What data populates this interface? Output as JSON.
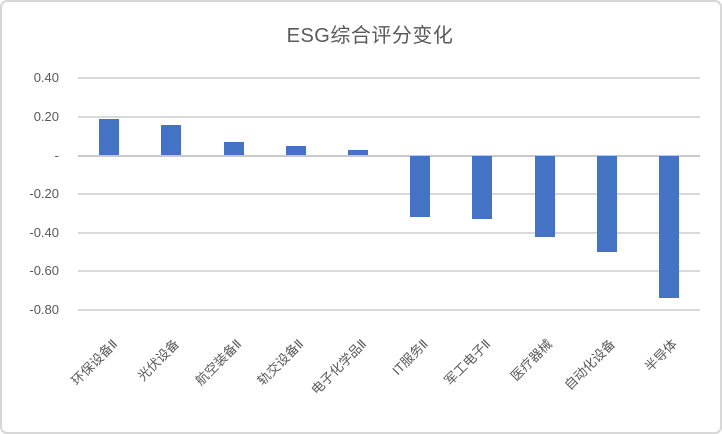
{
  "chart_data": {
    "type": "bar",
    "title": "ESG综合评分变化",
    "categories": [
      "环保设备Ⅱ",
      "光伏设备",
      "航空装备Ⅱ",
      "轨交设备Ⅱ",
      "电子化学品Ⅱ",
      "IT服务Ⅱ",
      "军工电子Ⅱ",
      "医疗器械",
      "自动化设备",
      "半导体"
    ],
    "values": [
      0.19,
      0.16,
      0.07,
      0.05,
      0.03,
      -0.32,
      -0.33,
      -0.42,
      -0.5,
      -0.74
    ],
    "yticks": [
      {
        "value": 0.4,
        "label": "0.40"
      },
      {
        "value": 0.2,
        "label": "0.20"
      },
      {
        "value": 0.0,
        "label": "-"
      },
      {
        "value": -0.2,
        "label": "-0.20"
      },
      {
        "value": -0.4,
        "label": "-0.40"
      },
      {
        "value": -0.6,
        "label": "-0.60"
      },
      {
        "value": -0.8,
        "label": "-0.80"
      }
    ],
    "ylim": [
      -0.8,
      0.4
    ],
    "grid": true,
    "legend": "none",
    "bar_color": "#4472C4",
    "gridline_color": "#d9d9d9",
    "axis_line_color": "#c9c9c9",
    "text_color": "#595959"
  }
}
